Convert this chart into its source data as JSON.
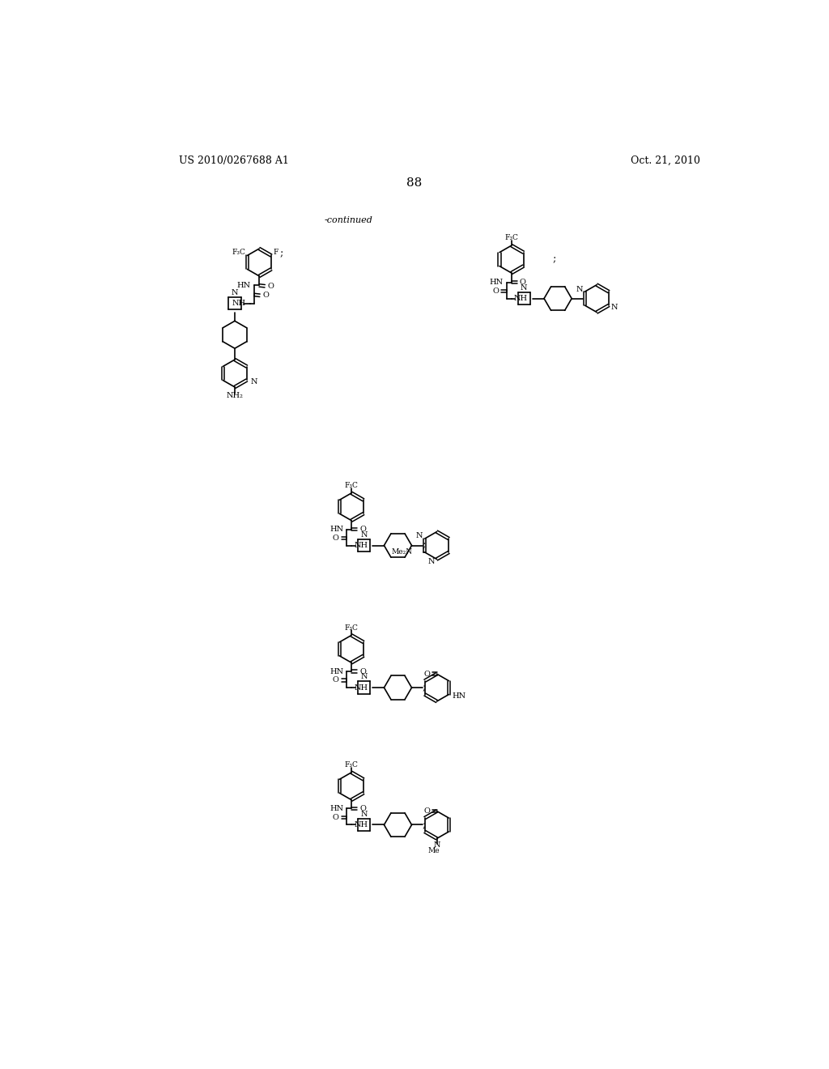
{
  "background_color": "#ffffff",
  "page_number": "88",
  "header_left": "US 2010/0267688 A1",
  "header_right": "Oct. 21, 2010",
  "continued_label": "-continued",
  "figsize": [
    10.24,
    13.2
  ],
  "dpi": 100
}
